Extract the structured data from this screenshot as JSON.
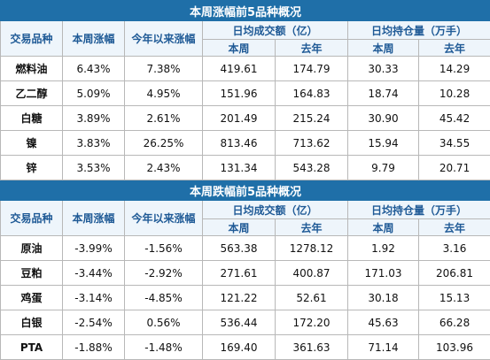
{
  "sections": [
    {
      "title": "本周涨幅前5品种概况",
      "headers": {
        "variety": "交易品种",
        "weekly_change": "本周涨幅",
        "ytd_change": "今年以来涨幅",
        "turnover": "日均成交额（亿）",
        "open_interest": "日均持仓量（万手）",
        "this_week": "本周",
        "last_year": "去年",
        "this_week_2": "本周",
        "last_year_2": "去年"
      },
      "rows": [
        {
          "name": "燃料油",
          "weekly": "6.43%",
          "ytd": "7.38%",
          "turnover_week": "419.61",
          "turnover_last": "174.79",
          "oi_week": "30.33",
          "oi_last": "14.29"
        },
        {
          "name": "乙二醇",
          "weekly": "5.09%",
          "ytd": "4.95%",
          "turnover_week": "151.96",
          "turnover_last": "164.83",
          "oi_week": "18.74",
          "oi_last": "10.28"
        },
        {
          "name": "白糖",
          "weekly": "3.89%",
          "ytd": "2.61%",
          "turnover_week": "201.49",
          "turnover_last": "215.24",
          "oi_week": "30.90",
          "oi_last": "45.42"
        },
        {
          "name": "镍",
          "weekly": "3.83%",
          "ytd": "26.25%",
          "turnover_week": "813.46",
          "turnover_last": "713.62",
          "oi_week": "15.94",
          "oi_last": "34.55"
        },
        {
          "name": "锌",
          "weekly": "3.53%",
          "ytd": "2.43%",
          "turnover_week": "131.34",
          "turnover_last": "543.28",
          "oi_week": "9.79",
          "oi_last": "20.71"
        }
      ]
    },
    {
      "title": "本周跌幅前5品种概况",
      "headers": {
        "variety": "交易品种",
        "weekly_change": "本周涨幅",
        "ytd_change": "今年以来涨幅",
        "turnover": "日均成交额（亿）",
        "open_interest": "日均持仓量（万手）",
        "this_week": "本周",
        "last_year": "去年",
        "this_week_2": "本周",
        "last_year_2": "去年"
      },
      "rows": [
        {
          "name": "原油",
          "weekly": "-3.99%",
          "ytd": "-1.56%",
          "turnover_week": "563.38",
          "turnover_last": "1278.12",
          "oi_week": "1.92",
          "oi_last": "3.16"
        },
        {
          "name": "豆粕",
          "weekly": "-3.44%",
          "ytd": "-2.92%",
          "turnover_week": "271.61",
          "turnover_last": "400.87",
          "oi_week": "171.03",
          "oi_last": "206.81"
        },
        {
          "name": "鸡蛋",
          "weekly": "-3.14%",
          "ytd": "-4.85%",
          "turnover_week": "121.22",
          "turnover_last": "52.61",
          "oi_week": "30.18",
          "oi_last": "15.13"
        },
        {
          "name": "白银",
          "weekly": "-2.54%",
          "ytd": "0.56%",
          "turnover_week": "536.44",
          "turnover_last": "172.20",
          "oi_week": "45.63",
          "oi_last": "66.28"
        },
        {
          "name": "PTA",
          "weekly": "-1.88%",
          "ytd": "-1.48%",
          "turnover_week": "169.40",
          "turnover_last": "361.63",
          "oi_week": "71.14",
          "oi_last": "103.96"
        }
      ]
    }
  ]
}
